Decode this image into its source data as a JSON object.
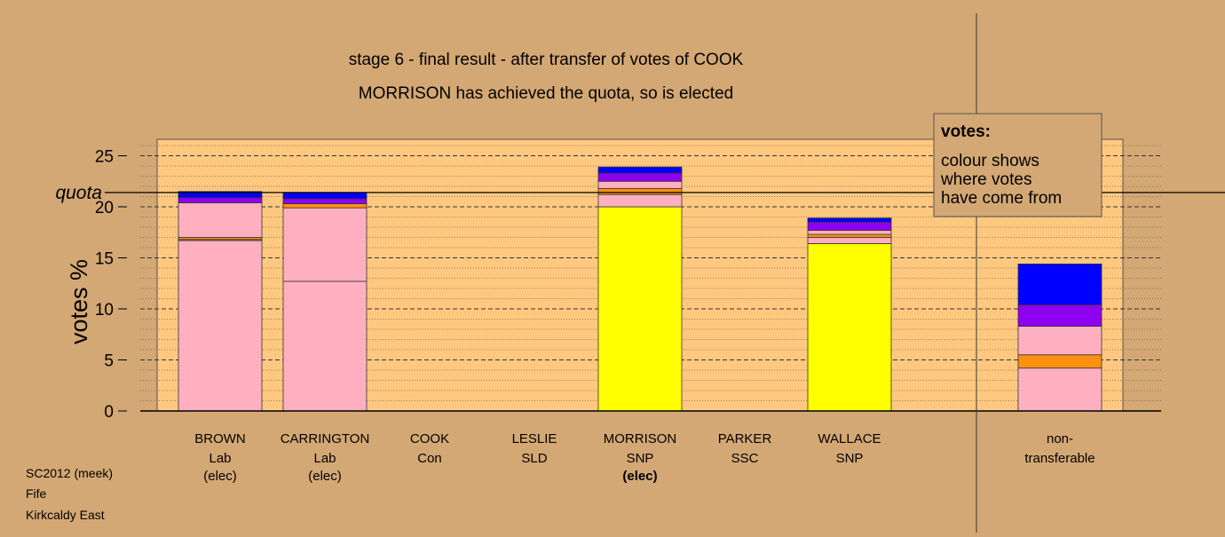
{
  "chart_data": {
    "type": "bar",
    "stacked": true,
    "title": "stage 6 - final result - after transfer of votes of COOK",
    "subtitle": "MORRISON has achieved the quota, so is elected",
    "ylabel": "votes %",
    "ylim": [
      0,
      26.5
    ],
    "yticks": [
      0,
      5,
      10,
      15,
      20,
      25
    ],
    "quota": 21.4,
    "quota_label": "quota",
    "grid": true,
    "candidates": [
      {
        "name": "BROWN",
        "party": "Lab",
        "status": "(elec)",
        "status_bold": false,
        "segments": [
          {
            "source": "pink",
            "value": 16.7
          },
          {
            "source": "pink",
            "value": 0.1
          },
          {
            "source": "orange",
            "value": 0.2
          },
          {
            "source": "pink",
            "value": 3.4
          },
          {
            "source": "purple",
            "value": 0.5
          },
          {
            "source": "blue",
            "value": 0.6
          }
        ]
      },
      {
        "name": "CARRINGTON",
        "party": "Lab",
        "status": "(elec)",
        "status_bold": false,
        "segments": [
          {
            "source": "pink",
            "value": 12.7
          },
          {
            "source": "pink",
            "value": 7.2
          },
          {
            "source": "orange",
            "value": 0.4
          },
          {
            "source": "purple",
            "value": 0.5
          },
          {
            "source": "blue",
            "value": 0.6
          }
        ]
      },
      {
        "name": "COOK",
        "party": "Con",
        "status": "",
        "status_bold": false,
        "segments": []
      },
      {
        "name": "LESLIE",
        "party": "SLD",
        "status": "",
        "status_bold": false,
        "segments": []
      },
      {
        "name": "MORRISON",
        "party": "SNP",
        "status": "(elec)",
        "status_bold": true,
        "segments": [
          {
            "source": "yellow",
            "value": 20.0
          },
          {
            "source": "pink",
            "value": 1.2
          },
          {
            "source": "orange",
            "value": 0.6
          },
          {
            "source": "pink",
            "value": 0.7
          },
          {
            "source": "purple",
            "value": 0.8
          },
          {
            "source": "blue",
            "value": 0.6
          }
        ]
      },
      {
        "name": "PARKER",
        "party": "SSC",
        "status": "",
        "status_bold": false,
        "segments": []
      },
      {
        "name": "WALLACE",
        "party": "SNP",
        "status": "",
        "status_bold": false,
        "segments": [
          {
            "source": "yellow",
            "value": 16.4
          },
          {
            "source": "pink",
            "value": 0.6
          },
          {
            "source": "orange",
            "value": 0.3
          },
          {
            "source": "pink",
            "value": 0.4
          },
          {
            "source": "purple",
            "value": 0.8
          },
          {
            "source": "blue",
            "value": 0.4
          }
        ]
      }
    ],
    "non_transferable": {
      "label_line1": "non-",
      "label_line2": "transferable",
      "segments": [
        {
          "source": "pink",
          "value": 4.2
        },
        {
          "source": "orange",
          "value": 1.3
        },
        {
          "source": "pink",
          "value": 2.8
        },
        {
          "source": "purple",
          "value": 2.1
        },
        {
          "source": "blue",
          "value": 4.0
        }
      ]
    },
    "colors": {
      "pink": "#ffb0c0",
      "orange": "#ff9010",
      "purple": "#9000f0",
      "blue": "#0000ff",
      "yellow": "#ffff00",
      "plot_bg": "#ffc880",
      "page_bg": "#d4a874"
    }
  },
  "legend": {
    "title": "votes:",
    "lines": [
      "colour shows",
      "where votes",
      "have come from"
    ]
  },
  "footer": {
    "line1": "SC2012 (meek)",
    "line2": "Fife",
    "line3": "Kirkcaldy East"
  }
}
